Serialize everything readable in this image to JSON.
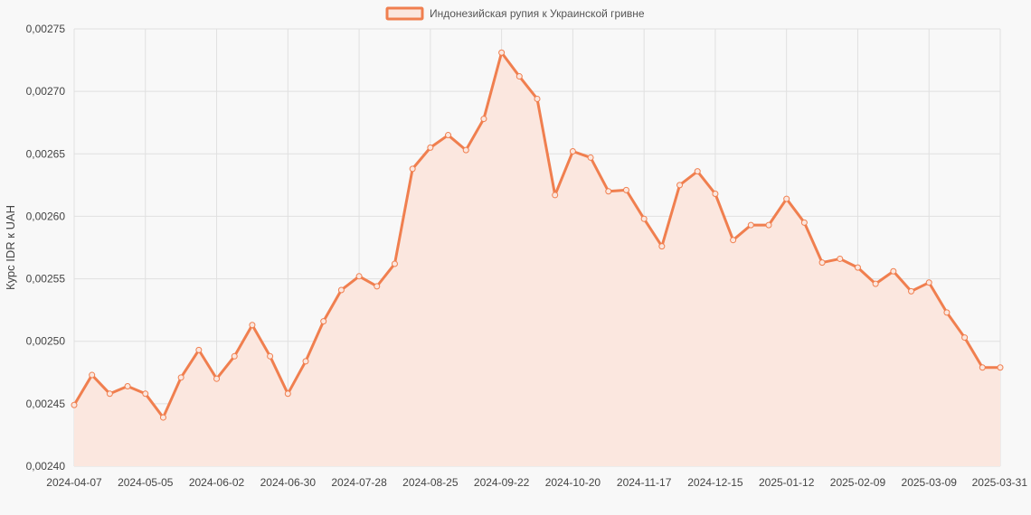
{
  "chart_data": {
    "type": "line",
    "series": [
      {
        "name": "Индонезийская рупия к Украинской гривне",
        "color": "#f07f4f",
        "fill": "#fbe7df",
        "values": [
          0.002449,
          0.002473,
          0.002458,
          0.002464,
          0.002458,
          0.002439,
          0.002471,
          0.002493,
          0.00247,
          0.002488,
          0.002513,
          0.002488,
          0.002458,
          0.002484,
          0.002516,
          0.002541,
          0.002552,
          0.002544,
          0.002562,
          0.002638,
          0.002655,
          0.002665,
          0.002653,
          0.002678,
          0.002731,
          0.002712,
          0.002694,
          0.002617,
          0.002652,
          0.002647,
          0.00262,
          0.002621,
          0.002598,
          0.002576,
          0.002625,
          0.002636,
          0.002618,
          0.002581,
          0.002593,
          0.002593,
          0.002614,
          0.002595,
          0.002563,
          0.002566,
          0.002559,
          0.002546,
          0.002556,
          0.00254,
          0.002547,
          0.002523,
          0.002503,
          0.002479,
          0.002479
        ]
      }
    ],
    "x_tick_labels": [
      "2024-04-07",
      "2024-05-05",
      "2024-06-02",
      "2024-06-30",
      "2024-07-28",
      "2024-08-25",
      "2024-09-22",
      "2024-10-20",
      "2024-11-17",
      "2024-12-15",
      "2025-01-12",
      "2025-02-09",
      "2025-03-09",
      "2025-03-31"
    ],
    "x_tick_positions": [
      0,
      4,
      8,
      12,
      16,
      20,
      24,
      28,
      32,
      36,
      40,
      44,
      48,
      52
    ],
    "y_tick_labels": [
      "0,00275",
      "0,00270",
      "0,00265",
      "0,00260",
      "0,00255",
      "0,00250",
      "0,00245",
      "0,00240"
    ],
    "ylim": [
      0.0024,
      0.00275
    ],
    "ylabel": "Курс IDR к UAH",
    "xlabel": "",
    "grid": true,
    "legend_position": "top-center"
  }
}
